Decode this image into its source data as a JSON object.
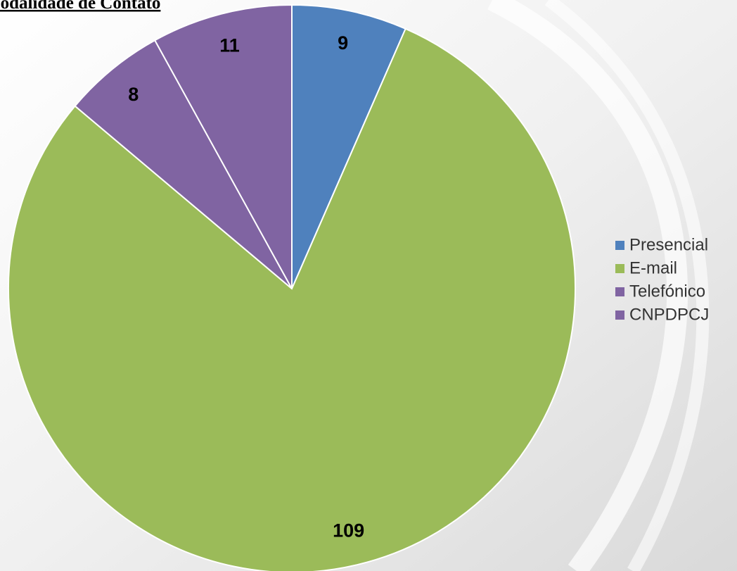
{
  "chart_data": {
    "type": "pie",
    "title": "Modalidade de Contato",
    "categories": [
      "Presencial",
      "E-mail",
      "Telefónico",
      "CNPDPCJ"
    ],
    "values": [
      9,
      109,
      8,
      11
    ],
    "colors": [
      "#4f81bd",
      "#9bbb59",
      "#8064a2",
      "#8064a2"
    ],
    "legend": "right"
  }
}
